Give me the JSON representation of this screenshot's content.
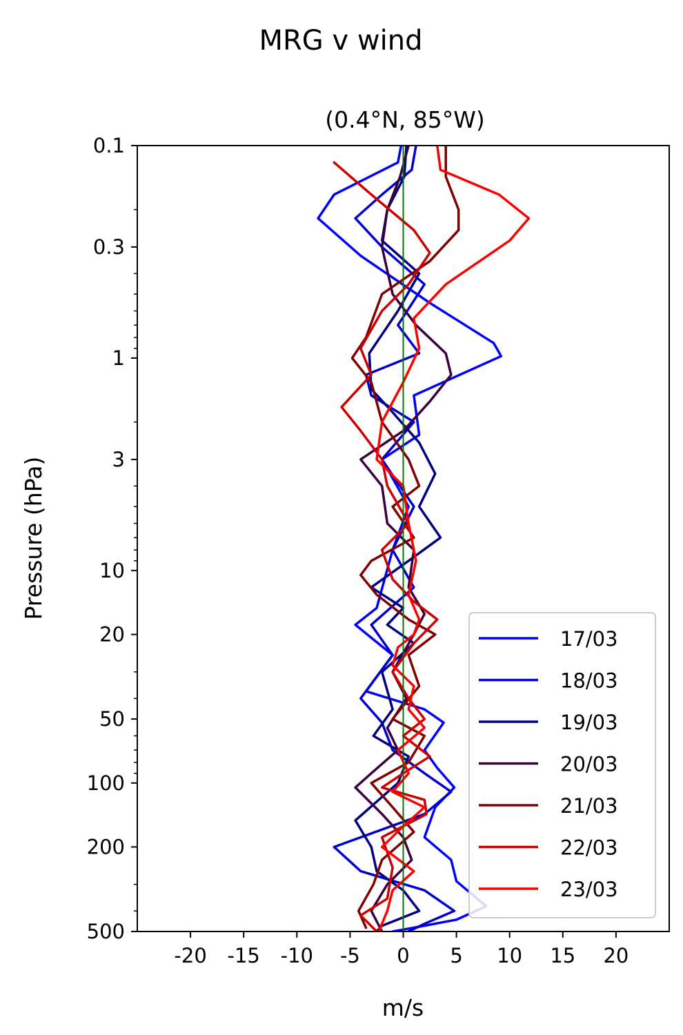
{
  "chart_data": {
    "type": "line",
    "suptitle": "MRG v wind",
    "title": "(0.4°N, 85°W)",
    "xlabel": "m/s",
    "ylabel": "Pressure (hPa)",
    "xlim": [
      -25,
      25
    ],
    "ylim": [
      500,
      0.1
    ],
    "yscale": "log",
    "x_ticks": [
      -20,
      -15,
      -10,
      -5,
      0,
      5,
      10,
      15,
      20
    ],
    "x_tick_labels": [
      "-20",
      "-15",
      "-10",
      "-5",
      "0",
      "5",
      "10",
      "15",
      "20"
    ],
    "y_ticks": [
      0.1,
      0.3,
      1,
      3,
      10,
      20,
      50,
      100,
      200,
      500
    ],
    "y_tick_labels": [
      "0.1",
      "0.3",
      "1",
      "3",
      "10",
      "20",
      "50",
      "100",
      "200",
      "500"
    ],
    "grid": false,
    "zero_line": {
      "x": 0,
      "color": "#007700"
    },
    "legend_position": "lower right",
    "series": [
      {
        "name": "17/03",
        "color": "#0000ff",
        "points": [
          [
            -0.2,
            0.1
          ],
          [
            -0.5,
            0.12
          ],
          [
            -6.5,
            0.17
          ],
          [
            -8,
            0.22
          ],
          [
            -4,
            0.33
          ],
          [
            2.5,
            0.55
          ],
          [
            8.5,
            0.85
          ],
          [
            9.2,
            0.98
          ],
          [
            1,
            1.5
          ],
          [
            1.5,
            2.3
          ],
          [
            -2,
            3
          ],
          [
            0.5,
            5
          ],
          [
            -1,
            8
          ],
          [
            -2.5,
            15
          ],
          [
            -4.5,
            18
          ],
          [
            -1,
            25
          ],
          [
            -3.5,
            37
          ],
          [
            2,
            45
          ],
          [
            3.8,
            52
          ],
          [
            2,
            70
          ],
          [
            3.2,
            85
          ],
          [
            4.8,
            105
          ],
          [
            3,
            130
          ],
          [
            2,
            180
          ],
          [
            4.5,
            230
          ],
          [
            5,
            290
          ],
          [
            7.8,
            380
          ],
          [
            5,
            440
          ],
          [
            1,
            480
          ],
          [
            -1,
            500
          ]
        ]
      },
      {
        "name": "18/03",
        "color": "#0000cc",
        "points": [
          [
            1.2,
            0.1
          ],
          [
            0.8,
            0.13
          ],
          [
            -2,
            0.17
          ],
          [
            -4.5,
            0.22
          ],
          [
            -2,
            0.3
          ],
          [
            2,
            0.45
          ],
          [
            -0.5,
            0.7
          ],
          [
            1.5,
            0.95
          ],
          [
            -3.5,
            1.2
          ],
          [
            -3,
            1.5
          ],
          [
            1,
            2
          ],
          [
            -2,
            3
          ],
          [
            1,
            5
          ],
          [
            -1,
            8
          ],
          [
            1,
            12
          ],
          [
            -3,
            18
          ],
          [
            -1,
            25
          ],
          [
            -4,
            40
          ],
          [
            -2,
            52
          ],
          [
            -1,
            70
          ],
          [
            2,
            90
          ],
          [
            4.5,
            110
          ],
          [
            2,
            140
          ],
          [
            -6.5,
            200
          ],
          [
            -4,
            260
          ],
          [
            2,
            320
          ],
          [
            4.8,
            400
          ],
          [
            2,
            460
          ],
          [
            0.5,
            500
          ]
        ]
      },
      {
        "name": "19/03",
        "color": "#000080",
        "points": [
          [
            0.3,
            0.1
          ],
          [
            0.1,
            0.14
          ],
          [
            -1.5,
            0.2
          ],
          [
            -2,
            0.28
          ],
          [
            1.5,
            0.4
          ],
          [
            -0.5,
            0.6
          ],
          [
            -3.2,
            0.95
          ],
          [
            -3,
            1.4
          ],
          [
            -1,
            1.8
          ],
          [
            1.5,
            2.5
          ],
          [
            3,
            3.5
          ],
          [
            1.5,
            5
          ],
          [
            3.5,
            7
          ],
          [
            0.5,
            9
          ],
          [
            -3,
            12
          ],
          [
            0,
            15
          ],
          [
            -1.5,
            18
          ],
          [
            1,
            22
          ],
          [
            -2,
            30
          ],
          [
            -1,
            45
          ],
          [
            -2.8,
            60
          ],
          [
            0.5,
            75
          ],
          [
            -0.5,
            100
          ],
          [
            -4.5,
            150
          ],
          [
            -3,
            200
          ],
          [
            -2.5,
            260
          ],
          [
            0,
            320
          ],
          [
            1.5,
            400
          ],
          [
            -2,
            470
          ],
          [
            -2.5,
            500
          ]
        ]
      },
      {
        "name": "20/03",
        "color": "#3a0040",
        "points": [
          [
            0.5,
            0.1
          ],
          [
            -0.3,
            0.14
          ],
          [
            -1.5,
            0.2
          ],
          [
            -2,
            0.3
          ],
          [
            -1,
            0.5
          ],
          [
            1.2,
            0.7
          ],
          [
            4,
            0.95
          ],
          [
            4.5,
            1.2
          ],
          [
            2.5,
            1.6
          ],
          [
            0,
            2.2
          ],
          [
            -4,
            3
          ],
          [
            -2,
            4
          ],
          [
            -1.5,
            6
          ],
          [
            1,
            8
          ],
          [
            0.5,
            12
          ],
          [
            2,
            16
          ],
          [
            1,
            20
          ],
          [
            -1,
            30
          ],
          [
            0.3,
            40
          ],
          [
            -1.5,
            55
          ],
          [
            -0.5,
            70
          ],
          [
            -3,
            90
          ],
          [
            -4.5,
            105
          ],
          [
            -2,
            140
          ],
          [
            0,
            180
          ],
          [
            0.8,
            230
          ],
          [
            -1.5,
            300
          ],
          [
            -3,
            400
          ],
          [
            -2,
            500
          ]
        ]
      },
      {
        "name": "21/03",
        "color": "#800000",
        "points": [
          [
            4,
            0.1
          ],
          [
            4,
            0.14
          ],
          [
            5.2,
            0.2
          ],
          [
            5.2,
            0.25
          ],
          [
            2.5,
            0.35
          ],
          [
            -2,
            0.5
          ],
          [
            -3.5,
            0.8
          ],
          [
            -4.8,
            1
          ],
          [
            -3,
            1.3
          ],
          [
            -2,
            2
          ],
          [
            0.5,
            3
          ],
          [
            1.5,
            4
          ],
          [
            -1,
            5
          ],
          [
            1,
            7
          ],
          [
            -3,
            9
          ],
          [
            -4,
            10.5
          ],
          [
            -2.5,
            13
          ],
          [
            0.5,
            17
          ],
          [
            3,
            20
          ],
          [
            0.5,
            25
          ],
          [
            1.5,
            35
          ],
          [
            -1,
            50
          ],
          [
            2,
            60
          ],
          [
            0.5,
            80
          ],
          [
            -3,
            100
          ],
          [
            -1,
            130
          ],
          [
            1,
            170
          ],
          [
            -2,
            230
          ],
          [
            -2.8,
            300
          ],
          [
            -4.2,
            400
          ],
          [
            -3.5,
            480
          ]
        ]
      },
      {
        "name": "22/03",
        "color": "#cc0000",
        "points": [
          [
            -6.5,
            0.12
          ],
          [
            -3,
            0.17
          ],
          [
            1,
            0.25
          ],
          [
            2.5,
            0.32
          ],
          [
            0.5,
            0.45
          ],
          [
            -2,
            0.6
          ],
          [
            -4,
            0.9
          ],
          [
            -3,
            1.2
          ],
          [
            -5.8,
            1.7
          ],
          [
            -4,
            2.2
          ],
          [
            -2,
            3
          ],
          [
            -1.5,
            4
          ],
          [
            0.5,
            6
          ],
          [
            -2,
            8
          ],
          [
            -1,
            11
          ],
          [
            1,
            14
          ],
          [
            3.2,
            17
          ],
          [
            1,
            22
          ],
          [
            -1,
            30
          ],
          [
            0.5,
            40
          ],
          [
            2,
            50
          ],
          [
            0,
            60
          ],
          [
            2.5,
            75
          ],
          [
            0,
            90
          ],
          [
            -2,
            105
          ],
          [
            2,
            120
          ],
          [
            2.2,
            140
          ],
          [
            -2,
            180
          ],
          [
            -1,
            250
          ],
          [
            -1.5,
            350
          ],
          [
            -4,
            420
          ],
          [
            -2.5,
            500
          ]
        ]
      },
      {
        "name": "23/03",
        "color": "#ff0000",
        "points": [
          [
            3.2,
            0.1
          ],
          [
            3.5,
            0.13
          ],
          [
            9,
            0.17
          ],
          [
            11.8,
            0.22
          ],
          [
            10,
            0.28
          ],
          [
            4,
            0.45
          ],
          [
            1,
            0.65
          ],
          [
            1.5,
            0.9
          ],
          [
            0,
            1.3
          ],
          [
            -2,
            2
          ],
          [
            -2.5,
            3
          ],
          [
            0,
            4
          ],
          [
            0.5,
            6
          ],
          [
            1.2,
            9
          ],
          [
            0.5,
            13
          ],
          [
            1.5,
            17
          ],
          [
            1,
            20
          ],
          [
            -0.5,
            23
          ],
          [
            -1,
            28
          ],
          [
            1,
            35
          ],
          [
            0.5,
            45
          ],
          [
            2,
            55
          ],
          [
            -0.5,
            70
          ],
          [
            0.5,
            90
          ],
          [
            -1,
            110
          ],
          [
            2,
            130
          ],
          [
            0,
            160
          ],
          [
            -2,
            200
          ],
          [
            1,
            260
          ],
          [
            -1,
            320
          ],
          [
            -1.5,
            400
          ],
          [
            -2.3,
            500
          ]
        ]
      }
    ]
  }
}
